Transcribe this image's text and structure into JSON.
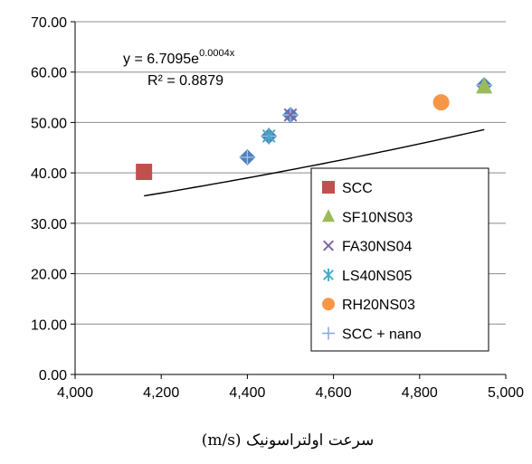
{
  "chart_data": {
    "type": "scatter",
    "xlabel": "سرعت اولتراسونیک (m/s)",
    "ylabel": "",
    "xlim": [
      4000,
      5000
    ],
    "ylim": [
      0,
      70
    ],
    "x_ticks": [
      "4,000",
      "4,200",
      "4,400",
      "4,600",
      "4,800",
      "5,000"
    ],
    "y_ticks": [
      "0.00",
      "10.00",
      "20.00",
      "30.00",
      "40.00",
      "50.00",
      "60.00",
      "70.00"
    ],
    "grid": "horizontal",
    "legend_position": "bottom-right",
    "series": [
      {
        "name": "SCC",
        "marker": "square",
        "color": "#c0504d",
        "points": [
          [
            4160,
            40.2
          ]
        ]
      },
      {
        "name": "SF10NS03",
        "marker": "triangle",
        "color": "#9bbb59",
        "points": [
          [
            4950,
            57.2
          ]
        ]
      },
      {
        "name": "FA30NS04",
        "marker": "x",
        "color": "#8064a2",
        "points": [
          [
            4500,
            51.5
          ]
        ]
      },
      {
        "name": "LS40NS05",
        "marker": "star",
        "color": "#4bacc6",
        "points": [
          [
            4450,
            47.3
          ]
        ]
      },
      {
        "name": "RH20NS03",
        "marker": "circle",
        "color": "#f79646",
        "points": [
          [
            4850,
            54.0
          ]
        ]
      },
      {
        "name": "SCC + nano",
        "marker": "plus",
        "color": "#4f81bd",
        "points": [
          [
            4400,
            43.1
          ],
          [
            4450,
            47.3
          ],
          [
            4500,
            51.5
          ],
          [
            4950,
            57.4
          ]
        ]
      }
    ],
    "trendline": {
      "type": "exponential",
      "equation_base": "y = 6.7095e",
      "equation_exp": "0.0004x",
      "r2": "R² = 0.8879",
      "x_range": [
        4160,
        4950
      ],
      "a": 6.7095,
      "b": 0.0004,
      "color": "#000000"
    }
  }
}
